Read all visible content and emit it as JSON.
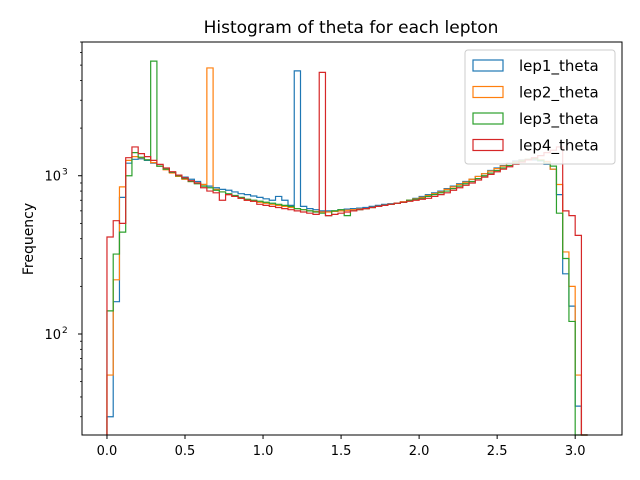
{
  "chart_data": {
    "type": "histogram",
    "title": "Histogram of theta for each lepton",
    "xlabel": "",
    "ylabel": "Frequency",
    "yscale": "log",
    "xlim": [
      -0.16,
      3.3
    ],
    "ylim": [
      23,
      7000
    ],
    "xticks": [
      0.0,
      0.5,
      1.0,
      1.5,
      2.0,
      2.5,
      3.0
    ],
    "xtick_labels": [
      "0.0",
      "0.5",
      "1.0",
      "1.5",
      "2.0",
      "2.5",
      "3.0"
    ],
    "yticks_major": [
      100,
      1000
    ],
    "ytick_labels": [
      "10",
      "10"
    ],
    "ytick_exponents": [
      "2",
      "3"
    ],
    "legend": {
      "position": "upper right"
    },
    "bin_start": 0.0,
    "bin_width": 0.04,
    "grid": false,
    "series": [
      {
        "name": "lep1_theta",
        "color": "#1f77b4",
        "values": [
          30,
          160,
          730,
          1200,
          1270,
          1280,
          1250,
          1200,
          1150,
          1100,
          1050,
          1000,
          980,
          950,
          920,
          880,
          860,
          840,
          820,
          810,
          790,
          770,
          760,
          745,
          730,
          715,
          700,
          740,
          700,
          650,
          4600,
          640,
          620,
          610,
          600,
          600,
          600,
          610,
          615,
          620,
          625,
          630,
          640,
          650,
          660,
          665,
          670,
          680,
          700,
          720,
          740,
          760,
          780,
          800,
          830,
          860,
          890,
          920,
          950,
          990,
          1030,
          1080,
          1120,
          1160,
          1200,
          1240,
          1260,
          1270,
          1260,
          1240,
          1180,
          1100,
          760,
          240,
          150,
          35,
          23
        ]
      },
      {
        "name": "lep2_theta",
        "color": "#ff7f0e",
        "values": [
          55,
          220,
          850,
          1250,
          1320,
          1300,
          1260,
          1210,
          1150,
          1090,
          1040,
          990,
          950,
          920,
          900,
          880,
          4800,
          820,
          790,
          760,
          740,
          720,
          700,
          690,
          680,
          670,
          660,
          650,
          640,
          630,
          620,
          610,
          600,
          595,
          590,
          590,
          595,
          600,
          605,
          610,
          615,
          620,
          630,
          640,
          650,
          660,
          670,
          685,
          700,
          715,
          730,
          750,
          770,
          790,
          820,
          850,
          880,
          910,
          950,
          990,
          1030,
          1070,
          1110,
          1150,
          1190,
          1220,
          1250,
          1270,
          1280,
          1260,
          1230,
          1100,
          880,
          330,
          200,
          55,
          23
        ]
      },
      {
        "name": "lep3_theta",
        "color": "#2ca02c",
        "values": [
          140,
          320,
          440,
          1000,
          1400,
          1310,
          1260,
          5300,
          1150,
          1100,
          1050,
          1000,
          960,
          920,
          890,
          860,
          840,
          810,
          790,
          770,
          750,
          730,
          710,
          700,
          690,
          680,
          670,
          660,
          650,
          640,
          620,
          610,
          600,
          590,
          580,
          560,
          600,
          610,
          560,
          600,
          610,
          620,
          630,
          640,
          650,
          660,
          670,
          680,
          700,
          710,
          720,
          740,
          760,
          780,
          800,
          830,
          860,
          890,
          920,
          960,
          1000,
          1040,
          1080,
          1120,
          1160,
          1200,
          1240,
          1270,
          1290,
          1250,
          1200,
          1150,
          580,
          300,
          120,
          23,
          23
        ]
      },
      {
        "name": "lep4_theta",
        "color": "#d62728",
        "values": [
          410,
          520,
          500,
          1300,
          1520,
          1380,
          1320,
          1250,
          1180,
          1120,
          1060,
          1010,
          970,
          930,
          900,
          840,
          800,
          780,
          700,
          760,
          740,
          720,
          700,
          690,
          660,
          650,
          640,
          630,
          620,
          610,
          600,
          590,
          580,
          570,
          4500,
          560,
          570,
          580,
          590,
          600,
          610,
          620,
          630,
          640,
          650,
          660,
          670,
          680,
          690,
          700,
          710,
          720,
          740,
          760,
          780,
          810,
          840,
          870,
          900,
          940,
          980,
          1020,
          1060,
          1100,
          1140,
          1180,
          1220,
          1260,
          1300,
          1340,
          1400,
          1450,
          1520,
          600,
          560,
          420,
          23
        ]
      }
    ]
  }
}
